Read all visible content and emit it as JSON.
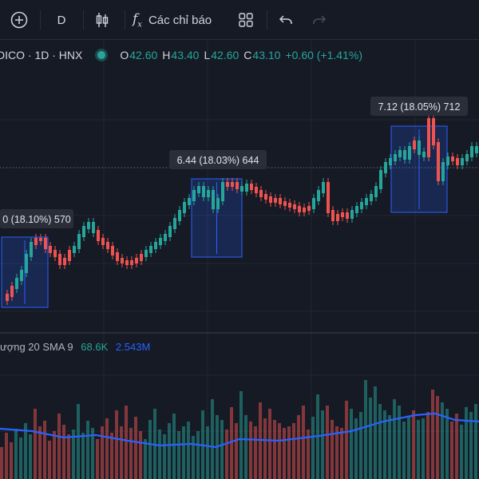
{
  "toolbar": {
    "interval": "D",
    "indicators_label": "Các chỉ báo"
  },
  "legend": {
    "symbol": "DICO · 1D · HNX",
    "open_key": "O",
    "open": "42.60",
    "high_key": "H",
    "high": "43.40",
    "low_key": "L",
    "low": "42.60",
    "close_key": "C",
    "close": "43.10",
    "change": "+0.60 (+1.41%)"
  },
  "volume_legend": {
    "title": "ượng 20 SMA 9",
    "volume": "68.6K",
    "sma": "2.543M"
  },
  "colors": {
    "background": "#161a25",
    "up": "#26a69a",
    "down": "#ef5350",
    "range_box_fill": "rgba(41,98,255,0.20)",
    "range_box_border": "#2962ff",
    "sma_line": "#2962ff",
    "label_bg": "#2a2e39"
  },
  "chart_data": {
    "type": "candlestick",
    "price_candles": [
      [
        0,
        0
      ],
      [
        7,
        0
      ],
      [
        13,
        0
      ],
      [
        19,
        1
      ],
      [
        25,
        1
      ],
      [
        31,
        1
      ],
      [
        37,
        1
      ],
      [
        43,
        0
      ],
      [
        49,
        0
      ],
      [
        55,
        0
      ],
      [
        61,
        0
      ],
      [
        67,
        0
      ],
      [
        73,
        0
      ],
      [
        79,
        0
      ],
      [
        85,
        0
      ],
      [
        91,
        1
      ],
      [
        97,
        1
      ],
      [
        103,
        1
      ],
      [
        109,
        1
      ],
      [
        115,
        1
      ],
      [
        121,
        0
      ],
      [
        127,
        0
      ],
      [
        133,
        0
      ],
      [
        139,
        0
      ],
      [
        145,
        0
      ],
      [
        151,
        0
      ],
      [
        157,
        0
      ],
      [
        163,
        0
      ],
      [
        169,
        0
      ],
      [
        175,
        0
      ],
      [
        181,
        1
      ],
      [
        187,
        1
      ],
      [
        193,
        1
      ],
      [
        199,
        1
      ],
      [
        205,
        1
      ],
      [
        211,
        1
      ],
      [
        217,
        1
      ],
      [
        223,
        1
      ],
      [
        229,
        1
      ],
      [
        235,
        1
      ],
      [
        241,
        1
      ],
      [
        247,
        1
      ],
      [
        253,
        1
      ],
      [
        259,
        1
      ],
      [
        265,
        1
      ],
      [
        271,
        1
      ],
      [
        277,
        1
      ],
      [
        283,
        0
      ],
      [
        289,
        0
      ],
      [
        295,
        0
      ],
      [
        301,
        1
      ],
      [
        307,
        1
      ],
      [
        313,
        0
      ],
      [
        319,
        0
      ],
      [
        325,
        0
      ],
      [
        331,
        0
      ],
      [
        337,
        0
      ],
      [
        343,
        0
      ],
      [
        349,
        0
      ],
      [
        355,
        0
      ],
      [
        361,
        0
      ],
      [
        367,
        0
      ],
      [
        373,
        0
      ],
      [
        379,
        0
      ],
      [
        385,
        0
      ],
      [
        391,
        1
      ],
      [
        397,
        1
      ],
      [
        403,
        1
      ],
      [
        409,
        0
      ],
      [
        415,
        0
      ],
      [
        421,
        0
      ],
      [
        427,
        0
      ],
      [
        433,
        0
      ],
      [
        439,
        1
      ],
      [
        445,
        1
      ],
      [
        451,
        1
      ],
      [
        457,
        1
      ],
      [
        463,
        1
      ],
      [
        469,
        1
      ],
      [
        475,
        1
      ],
      [
        481,
        1
      ],
      [
        487,
        1
      ],
      [
        493,
        1
      ],
      [
        499,
        1
      ],
      [
        505,
        1
      ],
      [
        511,
        1
      ],
      [
        517,
        0
      ],
      [
        523,
        1
      ],
      [
        529,
        1
      ],
      [
        535,
        0
      ],
      [
        541,
        0
      ],
      [
        547,
        0
      ],
      [
        553,
        1
      ],
      [
        559,
        1
      ],
      [
        565,
        0
      ],
      [
        571,
        0
      ],
      [
        577,
        1
      ],
      [
        583,
        1
      ],
      [
        589,
        1
      ],
      [
        595,
        1
      ]
    ],
    "range_annotations": [
      "0 (18.10%) 570",
      "6.44 (18.03%) 644",
      "7.12 (18.05%) 712"
    ]
  }
}
